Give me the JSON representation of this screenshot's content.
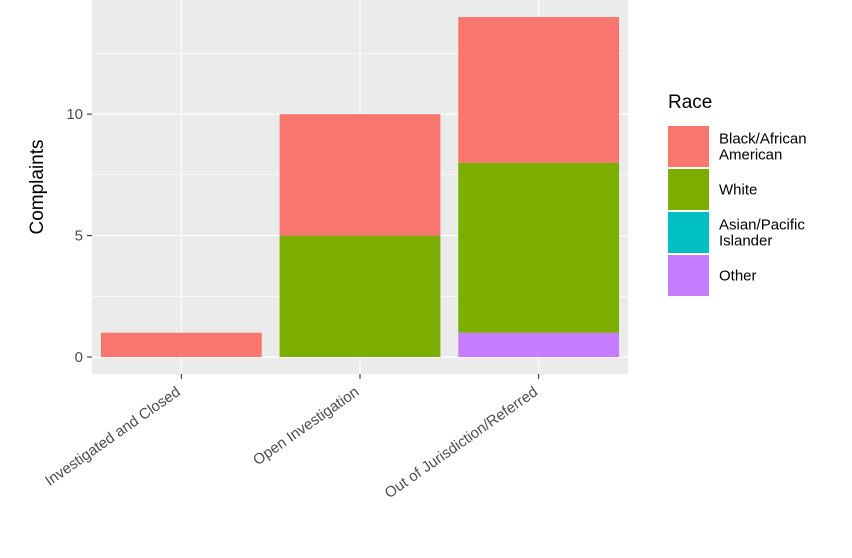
{
  "chart_data": {
    "type": "bar",
    "stacked": true,
    "categories": [
      "Investigated and Closed",
      "Open Investigation",
      "Out of Jurisdiction/Referred"
    ],
    "series": [
      {
        "name": "Black/African American",
        "values": [
          1,
          5,
          6
        ],
        "color": "#F8766D"
      },
      {
        "name": "White",
        "values": [
          0,
          5,
          7
        ],
        "color": "#7CAE00"
      },
      {
        "name": "Asian/Pacific Islander",
        "values": [
          0,
          0,
          0
        ],
        "color": "#00BFC4"
      },
      {
        "name": "Other",
        "values": [
          0,
          0,
          1
        ],
        "color": "#C77CFF"
      }
    ],
    "stack_order_bottom_to_top": [
      "Other",
      "Asian/Pacific Islander",
      "White",
      "Black/African American"
    ],
    "title": "",
    "xlabel": "",
    "ylabel": "Complaints",
    "ylim": [
      -0.7,
      14.7
    ],
    "yticks": [
      0,
      5,
      10
    ],
    "grid": true,
    "panel_background": "#EBEBEB",
    "legend": {
      "title": "Race",
      "placement": "right",
      "entries": [
        {
          "lines": [
            "Black/African",
            "American"
          ],
          "color": "#F8766D"
        },
        {
          "lines": [
            "White"
          ],
          "color": "#7CAE00"
        },
        {
          "lines": [
            "Asian/Pacific",
            "Islander"
          ],
          "color": "#00BFC4"
        },
        {
          "lines": [
            "Other"
          ],
          "color": "#C77CFF"
        }
      ]
    }
  }
}
